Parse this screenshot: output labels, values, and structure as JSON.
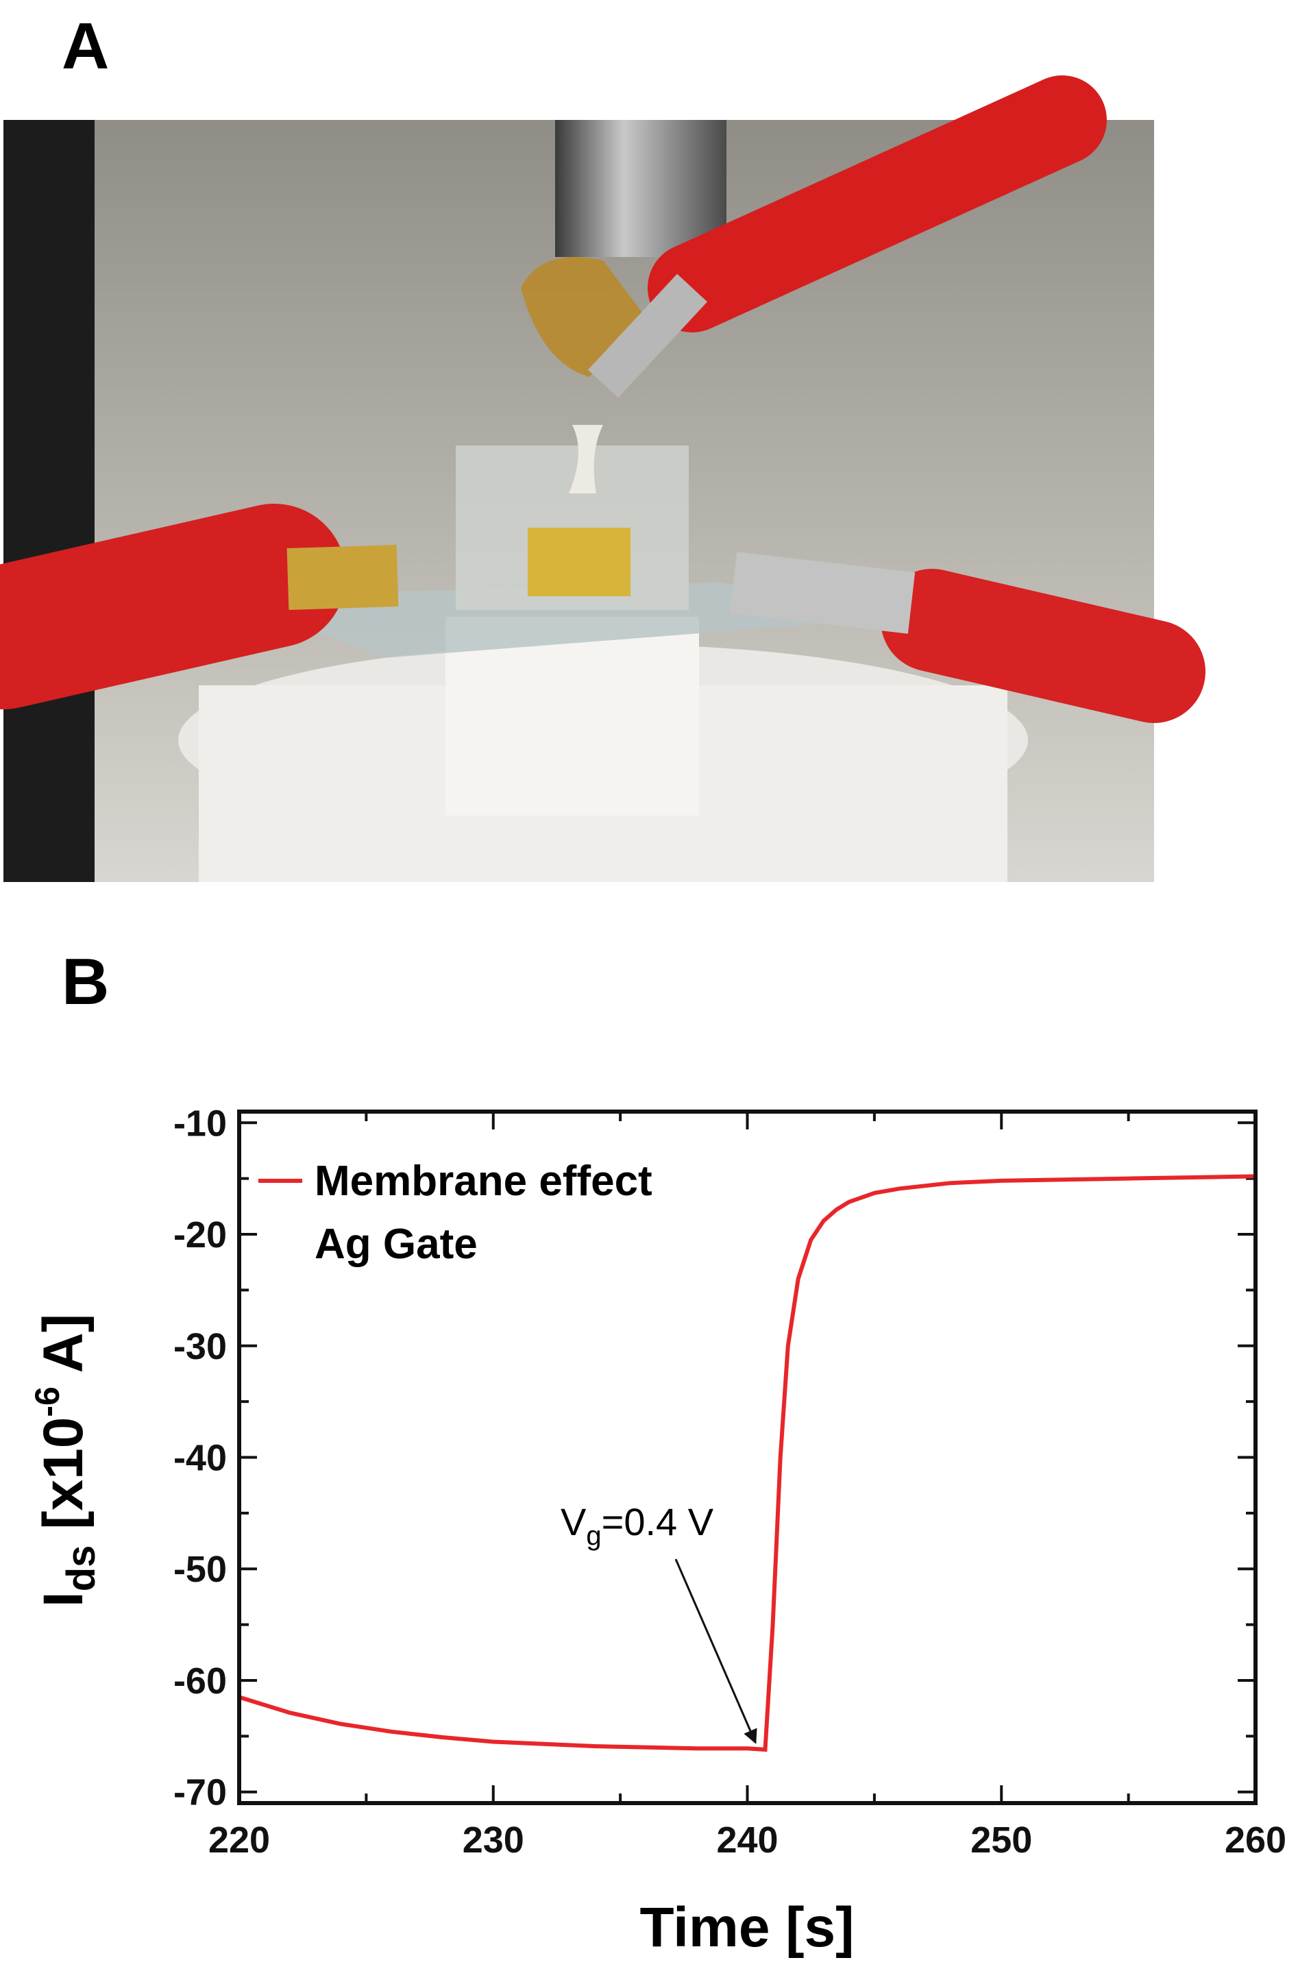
{
  "panel_labels": [
    "A",
    "B"
  ],
  "chart_data": {
    "type": "line",
    "x_label": "Time [s]",
    "y_label": {
      "symbol": "I",
      "subscript": "ds",
      "text": " [x10",
      "superscript": "-6",
      "unit": " A]"
    },
    "x": [
      220,
      222,
      224,
      226,
      228,
      230,
      232,
      234,
      236,
      238,
      240,
      240.7,
      241,
      241.3,
      241.6,
      242,
      242.5,
      243,
      243.5,
      244,
      245,
      246,
      248,
      250,
      255,
      260
    ],
    "series": [
      {
        "name": "Membrane effect",
        "color": "#e8262a",
        "values": [
          -61.5,
          -62.9,
          -63.9,
          -64.6,
          -65.1,
          -65.5,
          -65.7,
          -65.9,
          -66.0,
          -66.1,
          -66.1,
          -66.2,
          -55,
          -40,
          -30,
          -24,
          -20.5,
          -18.8,
          -17.8,
          -17.1,
          -16.3,
          -15.9,
          -15.4,
          -15.2,
          -15.0,
          -14.8
        ]
      }
    ],
    "legend_subtitle": "Ag Gate",
    "annotation": {
      "text": "V",
      "subscript": "g",
      "rest": "=0.4 V"
    },
    "xlim": [
      220,
      260
    ],
    "xticks": [
      220,
      230,
      240,
      250,
      260
    ],
    "ylim": [
      -71,
      -9
    ],
    "yticks": [
      -10,
      -20,
      -30,
      -40,
      -50,
      -60,
      -70
    ]
  }
}
